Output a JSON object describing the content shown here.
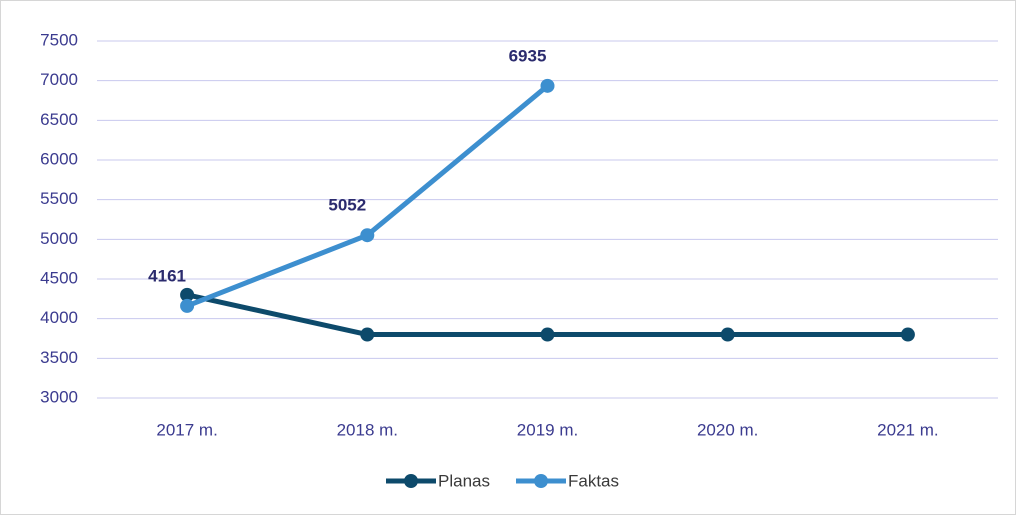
{
  "chart_data": {
    "type": "line",
    "categories": [
      "2017 m.",
      "2018 m.",
      "2019 m.",
      "2020 m.",
      "2021 m."
    ],
    "series": [
      {
        "name": "Planas",
        "color": "#0d4a6b",
        "values": [
          4300,
          3800,
          3800,
          3800,
          3800
        ]
      },
      {
        "name": "Faktas",
        "color": "#3d8fcf",
        "values": [
          4161,
          5052,
          6935,
          null,
          null
        ],
        "show_value_labels": true
      }
    ],
    "ylim": [
      3000,
      7500
    ],
    "yticks": [
      3000,
      3500,
      4000,
      4500,
      5000,
      5500,
      6000,
      6500,
      7000,
      7500
    ],
    "grid": true,
    "legend": "bottom"
  }
}
